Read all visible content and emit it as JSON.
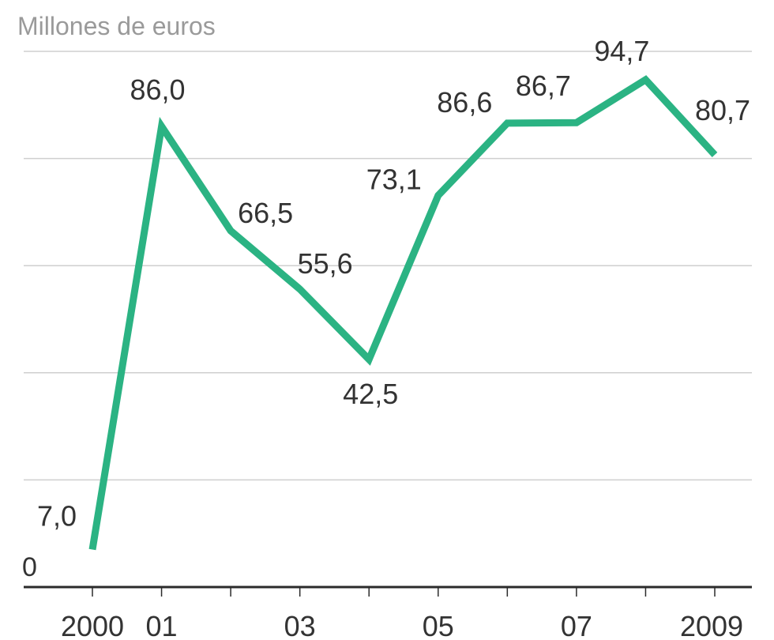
{
  "chart_data": {
    "type": "line",
    "unit_label": "Millones de euros",
    "ylabel": "Millones de euros",
    "xlabel": "",
    "ylim": [
      0,
      100
    ],
    "y_gridlines": [
      0,
      20,
      40,
      60,
      80,
      100
    ],
    "y_tick_labels": [
      {
        "value": 0,
        "label": "0"
      }
    ],
    "x": [
      2000,
      2001,
      2002,
      2003,
      2004,
      2005,
      2006,
      2007,
      2008,
      2009
    ],
    "x_tick_labels": [
      {
        "x": 2000,
        "label": "2000"
      },
      {
        "x": 2001,
        "label": "01"
      },
      {
        "x": 2003,
        "label": "03"
      },
      {
        "x": 2005,
        "label": "05"
      },
      {
        "x": 2007,
        "label": "07"
      },
      {
        "x": 2009,
        "label": "2009"
      }
    ],
    "series": [
      {
        "name": "Millones de euros",
        "color": "#2bb383",
        "values": [
          7.0,
          86.0,
          66.5,
          55.6,
          42.5,
          73.1,
          86.6,
          86.7,
          94.7,
          80.7
        ],
        "labels": [
          "7,0",
          "86,0",
          "66,5",
          "55,6",
          "42,5",
          "73,1",
          "86,6",
          "86,7",
          "94,7",
          "80,7"
        ]
      }
    ],
    "grid": true,
    "legend": "none"
  }
}
